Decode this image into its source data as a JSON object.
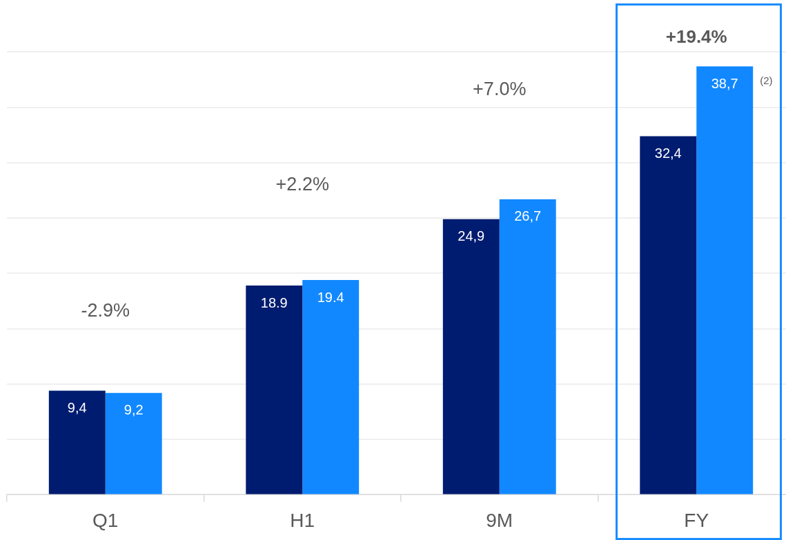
{
  "chart_data": {
    "type": "bar",
    "categories": [
      "Q1",
      "H1",
      "9M",
      "FY"
    ],
    "series": [
      {
        "color": "#001c70",
        "values": [
          9.4,
          18.9,
          24.9,
          32.4
        ],
        "value_labels": [
          "9,4",
          "18.9",
          "24,9",
          "32,4"
        ]
      },
      {
        "color": "#1188ff",
        "values": [
          9.2,
          19.4,
          26.7,
          38.7
        ],
        "value_labels": [
          "9,2",
          "19.4",
          "26,7",
          "38,7"
        ]
      }
    ],
    "ylim": [
      0,
      44.7
    ],
    "yticks": [
      {
        "value": 0,
        "label": null
      },
      {
        "value": 5,
        "label": null
      },
      {
        "value": 10,
        "label": null
      },
      {
        "value": 15,
        "label": null
      },
      {
        "value": 20,
        "label": null
      },
      {
        "value": 25,
        "label": null
      },
      {
        "value": 30,
        "label": null
      },
      {
        "value": 35,
        "label": null
      },
      {
        "value": 40,
        "label": null
      }
    ],
    "grid": "y",
    "tick_labels": "x",
    "annotations": [
      "-2.9%",
      "+2.2%",
      "+7.0%",
      "+19.4%",
      "(2)"
    ]
  }
}
